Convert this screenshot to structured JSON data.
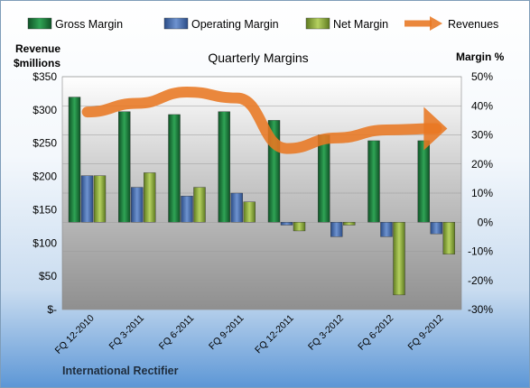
{
  "chart_data": {
    "type": "bar",
    "title": "Quarterly Margins",
    "left_axis_label": [
      "Revenue",
      "$millions"
    ],
    "right_axis_label": "Margin %",
    "categories": [
      "FQ 12-2010",
      "FQ 3-2011",
      "FQ 6-2011",
      "FQ 9-2011",
      "FQ 12-2011",
      "FQ 3-2012",
      "FQ 6-2012",
      "FQ 9-2012"
    ],
    "series": [
      {
        "name": "Gross Margin",
        "axis": "right",
        "color": "#1e7b3c",
        "values": [
          43,
          38,
          37,
          38,
          35,
          30,
          28,
          28
        ]
      },
      {
        "name": "Operating Margin",
        "axis": "right",
        "color": "#4a6fae",
        "values": [
          16,
          12,
          9,
          10,
          -1,
          -5,
          -5,
          -4
        ]
      },
      {
        "name": "Net Margin",
        "axis": "right",
        "color": "#8fae3c",
        "values": [
          16,
          17,
          12,
          7,
          -3,
          -1,
          -25,
          -11
        ]
      },
      {
        "name": "Revenues",
        "axis": "left",
        "type": "line",
        "color": "#e87722",
        "values": [
          297,
          310,
          327,
          318,
          242,
          258,
          270,
          272
        ]
      }
    ],
    "left_axis": {
      "min": 0,
      "max": 350,
      "step": 50,
      "tick_labels": [
        "$-",
        "$50",
        "$100",
        "$150",
        "$200",
        "$250",
        "$300",
        "$350"
      ]
    },
    "right_axis": {
      "min": -30,
      "max": 50,
      "step": 10,
      "tick_labels": [
        "-30%",
        "-20%",
        "-10%",
        "0%",
        "10%",
        "20%",
        "30%",
        "40%",
        "50%"
      ]
    },
    "grid": true,
    "legend_position": "top"
  },
  "footer": "International Rectifier"
}
